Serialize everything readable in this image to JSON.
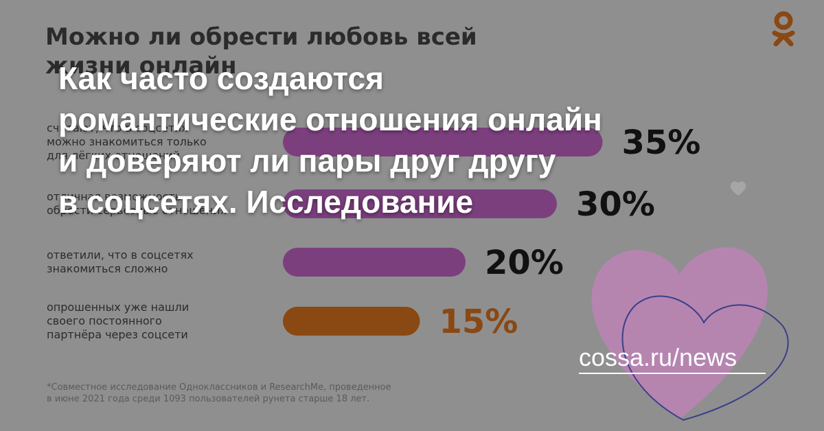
{
  "background": {
    "title": [
      "Можно ли обрести любовь всей",
      "жизни онлайн"
    ],
    "bars": [
      {
        "label": [
          "считают, что в соцсетях",
          "можно знакомиться только",
          "для лёгких отношений"
        ],
        "value": 35,
        "value_label": "35%",
        "color": "#7b3f7e"
      },
      {
        "label": [
          "отличная возможность",
          "обрести серьёзные отношения"
        ],
        "value": 30,
        "value_label": "30%",
        "color": "#7b3f7e"
      },
      {
        "label": [
          "ответили, что в соцсетях",
          "знакомиться сложно"
        ],
        "value": 20,
        "value_label": "20%",
        "color": "#7b3f7e"
      },
      {
        "label": [
          "опрошенных уже нашли",
          "своего постоянного",
          "партнёра через соцсети"
        ],
        "value": 15,
        "value_label": "15%",
        "color": "#8a4812"
      }
    ],
    "footnote": [
      "*Совместное исследование Одноклассников и ResearchMe, проведенное",
      "в июне 2021 года среди 1093 пользователей рунета старше 18 лет."
    ]
  },
  "headline": [
    "Как часто создаются",
    "романтические отношения онлайн",
    "и доверяют ли пары друг другу",
    "в соцсетях. Исследование"
  ],
  "source": "cossa.ru/news"
}
